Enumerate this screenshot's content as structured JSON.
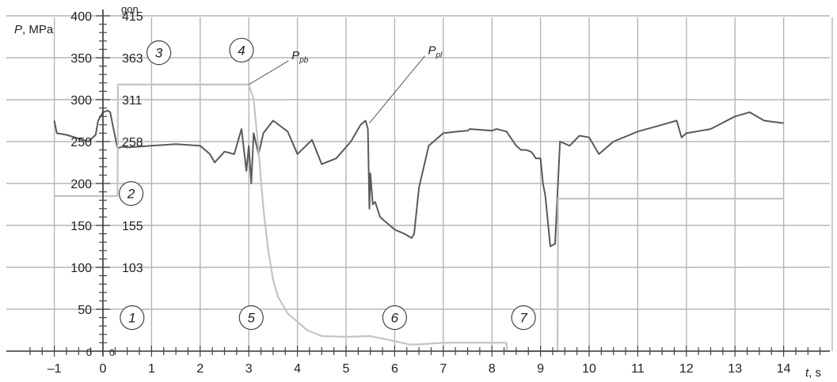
{
  "chart_data": {
    "type": "line",
    "xlabel": {
      "italic": "t",
      "rest": ", s"
    },
    "ylabel": {
      "italic": "P",
      "rest": ", MPa"
    },
    "secondary_unit": "gon",
    "xlim": [
      -1.5,
      15
    ],
    "ylim": [
      0,
      400
    ],
    "grid": true,
    "x_ticks": [
      -1,
      0,
      1,
      2,
      3,
      4,
      5,
      6,
      7,
      8,
      9,
      10,
      11,
      12,
      13,
      14
    ],
    "x_tick_labels": [
      "–1",
      "0",
      "1",
      "2",
      "3",
      "4",
      "5",
      "6",
      "7",
      "8",
      "9",
      "10",
      "11",
      "12",
      "13",
      "14"
    ],
    "y_ticks": [
      50,
      100,
      150,
      200,
      250,
      300,
      350,
      400
    ],
    "y_tick_labels": [
      "50",
      "100",
      "150",
      "200",
      "250",
      "300",
      "350",
      "400"
    ],
    "y_zero_label": "0",
    "secondary_ticks": [
      {
        "y": 400,
        "label": "415"
      },
      {
        "y": 350,
        "label": "363"
      },
      {
        "y": 300,
        "label": "311"
      },
      {
        "y": 250,
        "label": "258"
      },
      {
        "y": 150,
        "label": "155"
      },
      {
        "y": 100,
        "label": "103"
      },
      {
        "y": 0,
        "label": "0"
      }
    ],
    "series": [
      {
        "name": "",
        "color": "#5a5a5a",
        "x": [
          -1,
          -0.95,
          -0.75,
          -0.3,
          -0.15,
          -0.1,
          0,
          0.1,
          0.15,
          0.2,
          0.3,
          0.4,
          0.5,
          1,
          1.5,
          2,
          2.2,
          2.3,
          2.5,
          2.7,
          2.8,
          2.85,
          2.9,
          2.95,
          3,
          3.05,
          3.1,
          3.2,
          3.3,
          3.5,
          3.8,
          4,
          4.3,
          4.5,
          4.8,
          5.1,
          5.3,
          5.4,
          5.45,
          5.48,
          5.5,
          5.55,
          5.6,
          5.7,
          5.8,
          6,
          6.2,
          6.35,
          6.4,
          6.5,
          6.7,
          7,
          7.3,
          7.5,
          7.55,
          8,
          8.1,
          8.3,
          8.5,
          8.6,
          8.7,
          8.8,
          8.85,
          8.9,
          9,
          9.05,
          9.1,
          9.2,
          9.3,
          9.4,
          9.6,
          9.8,
          10,
          10.2,
          10.5,
          11,
          11.5,
          11.8,
          11.9,
          12,
          12.2,
          12.5,
          13,
          13.3,
          13.6,
          14
        ],
        "y": [
          275,
          260,
          258,
          250,
          258,
          275,
          285,
          287,
          285,
          270,
          242,
          244,
          243,
          245,
          247,
          245,
          235,
          225,
          238,
          235,
          255,
          265,
          240,
          215,
          245,
          200,
          260,
          235,
          260,
          275,
          262,
          235,
          252,
          223,
          230,
          250,
          270,
          275,
          265,
          170,
          212,
          175,
          178,
          160,
          155,
          145,
          140,
          135,
          140,
          195,
          245,
          260,
          262,
          263,
          265,
          263,
          265,
          262,
          245,
          240,
          240,
          238,
          235,
          230,
          230,
          200,
          185,
          125,
          128,
          250,
          245,
          257,
          255,
          235,
          250,
          262,
          270,
          275,
          255,
          260,
          262,
          265,
          280,
          285,
          275,
          272
        ]
      },
      {
        "name": "",
        "color": "#c4c4c4",
        "x": [
          -1,
          -0.5,
          0,
          0.3,
          0.31,
          0.5,
          1,
          1.5,
          2,
          2.5,
          2.9,
          3,
          3.1,
          3.2,
          3.3,
          3.4,
          3.5,
          3.6,
          3.7,
          3.8,
          4,
          4.2,
          4.5,
          5,
          5.5,
          6,
          6.3,
          6.5,
          7,
          7.5,
          8,
          8.3,
          8.31,
          8.5,
          9,
          9.3,
          9.35,
          9.36,
          9.5,
          10,
          11,
          12,
          13,
          14
        ],
        "y": [
          185,
          185,
          185,
          185,
          318,
          318,
          318,
          318,
          318,
          318,
          318,
          318,
          300,
          240,
          170,
          120,
          85,
          65,
          55,
          45,
          35,
          25,
          18,
          17,
          18,
          12,
          8,
          8,
          10,
          10,
          10,
          10,
          0,
          0,
          0,
          0,
          0,
          182,
          182,
          182,
          182,
          182,
          182,
          182
        ]
      }
    ],
    "annotations": [
      {
        "label": "1",
        "x": 0.6,
        "y": 40
      },
      {
        "label": "2",
        "x": 0.58,
        "y": 188
      },
      {
        "label": "3",
        "x": 1.15,
        "y": 356
      },
      {
        "label": "4",
        "x": 2.85,
        "y": 359
      },
      {
        "label": "5",
        "x": 3.05,
        "y": 40
      },
      {
        "label": "6",
        "x": 6,
        "y": 40
      },
      {
        "label": "7",
        "x": 8.65,
        "y": 40
      }
    ],
    "callouts": [
      {
        "text": "P",
        "sub": "pb",
        "x": 3,
        "y": 318
      },
      {
        "text": "P",
        "sub": "pl",
        "x": 5.48,
        "y": 272
      }
    ]
  }
}
